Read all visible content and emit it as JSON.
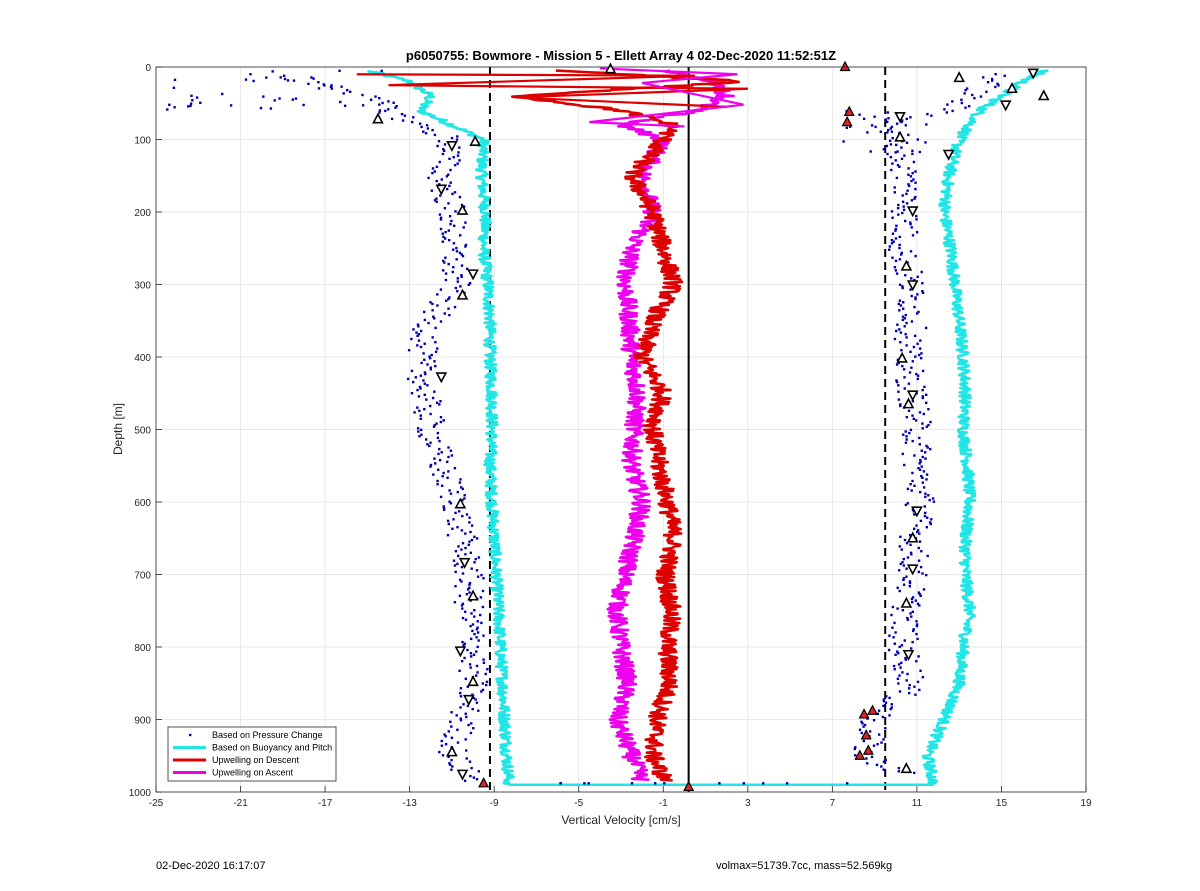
{
  "chart_data": {
    "type": "scatter",
    "title": "p6050755: Bowmore - Mission 5 - Ellett Array 4 02-Dec-2020 11:52:51Z",
    "xlabel": "Vertical Velocity [cm/s]",
    "ylabel": "Depth [m]",
    "xlim": [
      -25,
      19
    ],
    "ylim": [
      0,
      1000
    ],
    "y_reversed": true,
    "grid": true,
    "x_ticks": [
      -25,
      -21,
      -17,
      -13,
      -9,
      -5,
      -1,
      3,
      7,
      11,
      15,
      19
    ],
    "y_ticks": [
      0,
      100,
      200,
      300,
      400,
      500,
      600,
      700,
      800,
      900,
      1000
    ],
    "x_tick_labels": [
      "-25",
      "-21",
      "-17",
      "-13",
      "-9",
      "-5",
      "-1",
      "3",
      "7",
      "11",
      "15",
      "19"
    ],
    "y_tick_labels": [
      "0",
      "100",
      "200",
      "300",
      "400",
      "500",
      "600",
      "700",
      "800",
      "900",
      "1000"
    ],
    "legend_position": "bottom-left",
    "legend": [
      {
        "label": "Based on Pressure Change",
        "color": "#0000aa",
        "style": "dots"
      },
      {
        "label": "Based on Buoyancy and Pitch",
        "color": "#22e6e6",
        "style": "line"
      },
      {
        "label": "Upwelling on Descent",
        "color": "#dd0000",
        "style": "line"
      },
      {
        "label": "Upwelling on Ascent",
        "color": "#ee00ee",
        "style": "line"
      }
    ],
    "reference_lines": [
      {
        "x": -9.2,
        "style": "dashed",
        "color": "#000000"
      },
      {
        "x": 0.2,
        "style": "solid",
        "color": "#000000"
      },
      {
        "x": 9.5,
        "style": "dashed",
        "color": "#000000"
      }
    ],
    "series": [
      {
        "name": "Based on Pressure Change",
        "color": "#0000aa",
        "profiles": [
          {
            "depth": [
              10,
              30,
              50,
              75,
              100,
              150,
              200,
              250,
              300,
              350,
              400,
              450,
              500,
              550,
              600,
              650,
              700,
              750,
              800,
              850,
              900,
              950,
              985
            ],
            "velocity": [
              -20,
              -16,
              -14.5,
              -13,
              -11,
              -11.5,
              -11,
              -11,
              -10.8,
              -12,
              -12.5,
              -12.3,
              -12,
              -11.5,
              -10.8,
              -10.5,
              -10.2,
              -10.2,
              -10,
              -10,
              -10.5,
              -11,
              -10
            ]
          },
          {
            "depth": [
              10,
              30,
              60,
              80,
              100,
              150,
              200,
              250,
              300,
              350,
              400,
              450,
              500,
              550,
              600,
              650,
              700,
              750,
              800,
              850,
              900,
              950,
              975
            ],
            "velocity": [
              15,
              14,
              12.5,
              10,
              10,
              10.5,
              10.5,
              10.3,
              10.7,
              10.8,
              10.5,
              10.8,
              11,
              11,
              11.2,
              10.9,
              10.8,
              10.5,
              10.3,
              10.8,
              9,
              8.5,
              10.5
            ]
          }
        ]
      },
      {
        "name": "Based on Buoyancy and Pitch",
        "color": "#22e6e6",
        "profiles": [
          {
            "depth": [
              5,
              20,
              40,
              60,
              80,
              100,
              150,
              200,
              250,
              300,
              350,
              400,
              450,
              500,
              550,
              600,
              650,
              700,
              750,
              800,
              850,
              900,
              950,
              990
            ],
            "velocity": [
              -15,
              -13,
              -12,
              -12.5,
              -11,
              -9.5,
              -9.6,
              -9.4,
              -9.5,
              -9.3,
              -9.2,
              -9.2,
              -9.1,
              -9.1,
              -9.2,
              -9.1,
              -9.0,
              -8.9,
              -8.8,
              -8.7,
              -8.6,
              -8.5,
              -8.4,
              -8.3
            ]
          },
          {
            "depth": [
              5,
              20,
              40,
              60,
              80,
              100,
              150,
              200,
              250,
              300,
              350,
              400,
              450,
              500,
              550,
              600,
              650,
              700,
              750,
              800,
              850,
              900,
              950,
              990
            ],
            "velocity": [
              17,
              16,
              15,
              14,
              13.5,
              13,
              12.5,
              12.3,
              12.6,
              12.8,
              13,
              13.2,
              13.3,
              13.2,
              13.4,
              13.5,
              13.3,
              13.3,
              13.5,
              13.2,
              13,
              12.3,
              11.5,
              11.8
            ]
          }
        ]
      },
      {
        "name": "Upwelling on Descent",
        "color": "#dd0000",
        "depth": [
          5,
          20,
          40,
          60,
          80,
          100,
          150,
          200,
          250,
          300,
          350,
          400,
          450,
          500,
          550,
          600,
          650,
          700,
          750,
          800,
          850,
          900,
          950,
          985
        ],
        "velocity": [
          -6,
          3,
          -8,
          -3,
          -0.5,
          -1,
          -2.5,
          -1.5,
          -1,
          -0.5,
          -1.5,
          -2,
          -1,
          -1.5,
          -1.2,
          -0.8,
          -0.5,
          -0.9,
          -0.6,
          -0.8,
          -0.7,
          -1.3,
          -1.5,
          -0.9
        ]
      },
      {
        "name": "Upwelling on Ascent",
        "color": "#ee00ee",
        "depth": [
          5,
          20,
          40,
          60,
          80,
          100,
          150,
          200,
          250,
          300,
          350,
          400,
          450,
          500,
          550,
          600,
          650,
          700,
          750,
          800,
          850,
          900,
          950,
          985
        ],
        "velocity": [
          -1,
          1.5,
          2,
          0.5,
          -3,
          -1,
          -2,
          -1.5,
          -2.5,
          -2.8,
          -2.6,
          -2.5,
          -2.2,
          -2.4,
          -2.5,
          -2.0,
          -2.4,
          -2.8,
          -3.2,
          -3.0,
          -2.7,
          -3.2,
          -2.5,
          -2.0
        ]
      }
    ],
    "markers": {
      "pressure_based": [
        {
          "v": -14.5,
          "d": 72
        },
        {
          "v": -11,
          "d": 108
        },
        {
          "v": -9.9,
          "d": 103
        },
        {
          "v": -11.5,
          "d": 168
        },
        {
          "v": -10.5,
          "d": 198
        },
        {
          "v": -10,
          "d": 285
        },
        {
          "v": -10.5,
          "d": 315
        },
        {
          "v": -11.5,
          "d": 427
        },
        {
          "v": -10.6,
          "d": 603
        },
        {
          "v": -10.4,
          "d": 683
        },
        {
          "v": -10,
          "d": 730
        },
        {
          "v": -10.6,
          "d": 805
        },
        {
          "v": -10,
          "d": 848
        },
        {
          "v": -10.2,
          "d": 872
        },
        {
          "v": -11,
          "d": 945
        },
        {
          "v": -10.5,
          "d": 975
        },
        {
          "v": 13,
          "d": 15
        },
        {
          "v": 16.5,
          "d": 8
        },
        {
          "v": 15.5,
          "d": 30
        },
        {
          "v": 15.2,
          "d": 52
        },
        {
          "v": 17,
          "d": 40
        },
        {
          "v": 12.5,
          "d": 120
        },
        {
          "v": 10.2,
          "d": 97
        },
        {
          "v": 10.8,
          "d": 198
        },
        {
          "v": 10.5,
          "d": 275
        },
        {
          "v": 10.8,
          "d": 300
        },
        {
          "v": 10.3,
          "d": 402
        },
        {
          "v": 10.8,
          "d": 452
        },
        {
          "v": 10.6,
          "d": 465
        },
        {
          "v": 11,
          "d": 612
        },
        {
          "v": 10.8,
          "d": 650
        },
        {
          "v": 10.8,
          "d": 692
        },
        {
          "v": 10.5,
          "d": 740
        },
        {
          "v": 10.6,
          "d": 810
        },
        {
          "v": 10.5,
          "d": 968
        },
        {
          "v": 10.2,
          "d": 68
        },
        {
          "v": -3.5,
          "d": 3
        }
      ],
      "red_filled": [
        {
          "v": 7.6,
          "d": 0
        },
        {
          "v": 7.8,
          "d": 62
        },
        {
          "v": 7.7,
          "d": 76
        },
        {
          "v": 8.5,
          "d": 893
        },
        {
          "v": 8.6,
          "d": 922
        },
        {
          "v": 8.9,
          "d": 888
        },
        {
          "v": 8.3,
          "d": 950
        },
        {
          "v": 8.7,
          "d": 943
        },
        {
          "v": -9.5,
          "d": 988
        },
        {
          "v": 0.2,
          "d": 993
        }
      ]
    }
  },
  "footer": {
    "timestamp": "02-Dec-2020 16:17:07",
    "info": "volmax=51739.7cc, mass=52.569kg"
  }
}
